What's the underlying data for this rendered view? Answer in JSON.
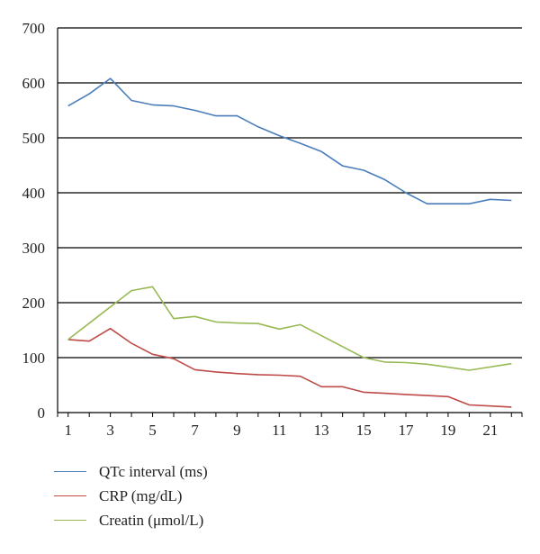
{
  "chart_data": {
    "type": "line",
    "title": "",
    "xlabel": "",
    "ylabel": "",
    "x": [
      1,
      2,
      3,
      4,
      5,
      6,
      7,
      8,
      9,
      10,
      11,
      12,
      13,
      14,
      15,
      16,
      17,
      18,
      19,
      20,
      21,
      22
    ],
    "xticks": [
      1,
      3,
      5,
      7,
      9,
      11,
      13,
      15,
      17,
      19,
      21
    ],
    "xlim": [
      0.5,
      22.5
    ],
    "ylim": [
      0,
      700
    ],
    "yticks": [
      0,
      100,
      200,
      300,
      400,
      500,
      600,
      700
    ],
    "grid": "horizontal",
    "legend_position": "bottom",
    "series": [
      {
        "name": "QTc interval (ms)",
        "color": "#4a7ebb",
        "values": [
          558,
          580,
          608,
          568,
          560,
          558,
          550,
          540,
          540,
          520,
          504,
          490,
          475,
          449,
          441,
          424,
          400,
          380,
          380,
          380,
          388,
          386
        ]
      },
      {
        "name": "CRP (mg/dL)",
        "color": "#be4b48",
        "values": [
          133,
          130,
          153,
          126,
          106,
          98,
          78,
          74,
          71,
          69,
          68,
          66,
          47,
          47,
          37,
          35,
          33,
          31,
          29,
          14,
          12,
          10
        ]
      },
      {
        "name": "Creatin (μmol/L)",
        "color": "#98b954",
        "values": [
          133,
          null,
          null,
          222,
          229,
          171,
          175,
          165,
          163,
          162,
          152,
          160,
          null,
          null,
          100,
          92,
          91,
          88,
          null,
          77,
          null,
          89
        ]
      }
    ]
  },
  "legend": {
    "items": [
      {
        "label": "QTc interval (ms)",
        "color": "#4a7ebb"
      },
      {
        "label": "CRP (mg/dL)",
        "color": "#be4b48"
      },
      {
        "label": "Creatin (μmol/L)",
        "color": "#98b954"
      }
    ]
  }
}
